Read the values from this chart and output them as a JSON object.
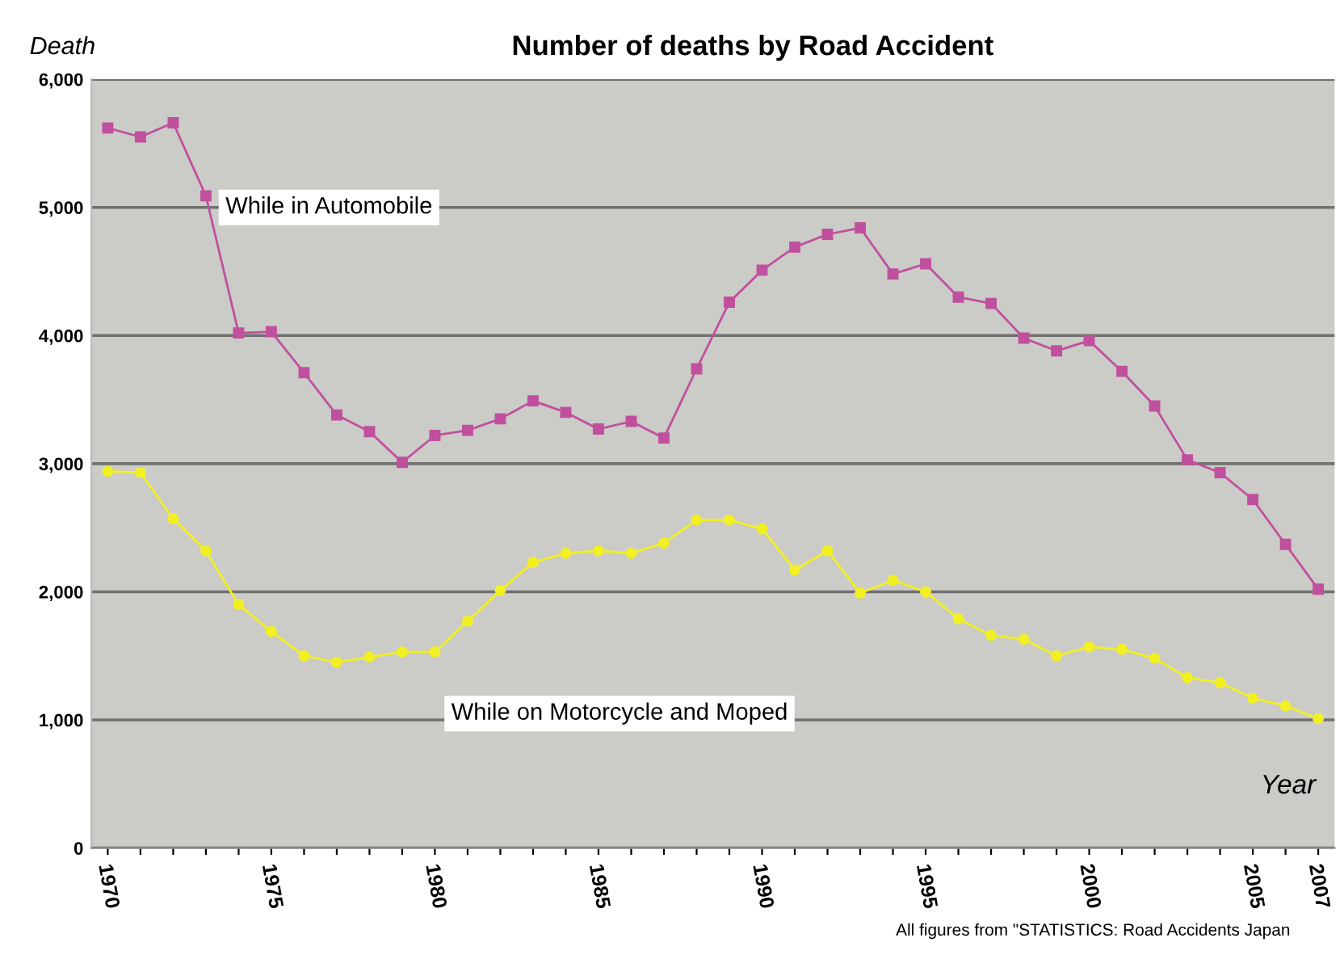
{
  "chart_data": {
    "type": "line",
    "title": "Number of deaths by Road Accident",
    "ylabel": "Death",
    "xlabel": "Year",
    "annotations": [
      "All figures from \"STATISTICS: Road Accidents Japan"
    ],
    "categories": [
      "1970",
      null,
      null,
      null,
      null,
      "1975",
      null,
      null,
      null,
      null,
      "1980",
      null,
      null,
      null,
      null,
      "1985",
      null,
      null,
      null,
      null,
      "1990",
      null,
      null,
      null,
      null,
      "1995",
      null,
      null,
      null,
      null,
      "2000",
      null,
      null,
      null,
      null,
      "2005",
      null,
      "2007"
    ],
    "series": [
      {
        "name": "While in Automobile",
        "color": "#c0509e",
        "marker": "square",
        "values": [
          5620,
          5550,
          5660,
          5090,
          4020,
          4030,
          3710,
          3380,
          3250,
          3010,
          3220,
          3260,
          3350,
          3490,
          3400,
          3270,
          3330,
          3200,
          3740,
          4260,
          4510,
          4690,
          4790,
          4840,
          4480,
          4560,
          4300,
          4250,
          3980,
          3880,
          3960,
          3720,
          3450,
          3030,
          2930,
          2720,
          2370,
          2020
        ]
      },
      {
        "name": "While on Motorcycle and Moped",
        "color": "#f2f022",
        "marker": "circle",
        "values": [
          2940,
          2930,
          2570,
          2320,
          1900,
          1690,
          1500,
          1450,
          1490,
          1530,
          1530,
          1770,
          2010,
          2230,
          2300,
          2320,
          2300,
          2380,
          2560,
          2560,
          2490,
          2170,
          2320,
          1990,
          2090,
          2000,
          1790,
          1660,
          1630,
          1500,
          1570,
          1550,
          1480,
          1330,
          1290,
          1170,
          1110,
          1010
        ]
      }
    ],
    "ylim": [
      0,
      6000
    ],
    "yticks": [
      0,
      {
        "value": 1000,
        "label": "1,000"
      },
      {
        "value": 2000,
        "label": "2,000"
      },
      {
        "value": 3000,
        "label": "3,000"
      },
      {
        "value": 4000,
        "label": "4,000"
      },
      {
        "value": 5000,
        "label": "5,000"
      },
      {
        "value": 6000,
        "label": "6,000"
      }
    ],
    "grid": "y",
    "legend": false
  }
}
